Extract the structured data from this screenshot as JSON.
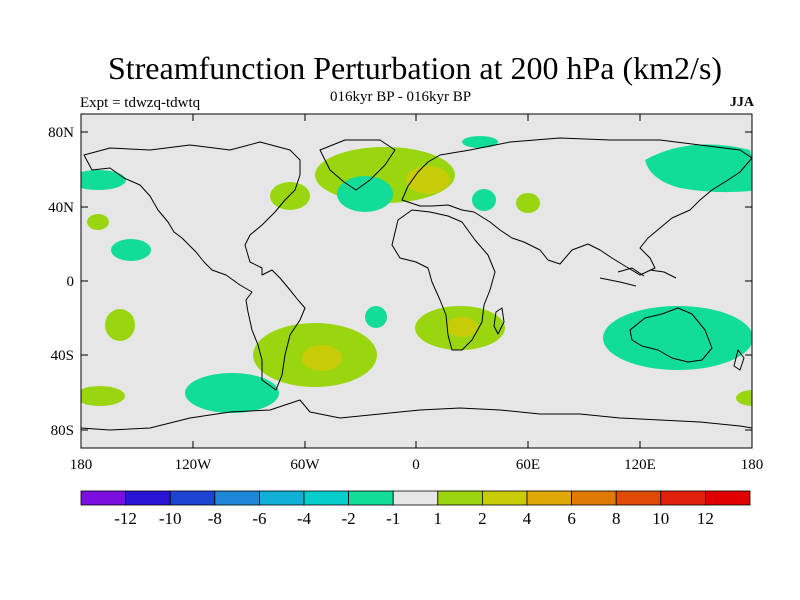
{
  "title": "Streamfunction Perturbation at 200 hPa (km2/s)",
  "subtitle_center": "016kyr BP - 016kyr BP",
  "subtitle_left": "Expt = tdwzq-tdwtq",
  "subtitle_right": "JJA",
  "map": {
    "background_color": "#e6e6e6",
    "coastline_color": "#000000",
    "lat_labels": [
      "80N",
      "40N",
      "0",
      "40S",
      "80S"
    ],
    "lon_labels": [
      "180",
      "120W",
      "60W",
      "0",
      "60E",
      "120E",
      "180"
    ]
  },
  "colorbar": {
    "colors": [
      "#7a0fe0",
      "#2a14d6",
      "#1c44d0",
      "#1e88d6",
      "#12b0d6",
      "#06cccc",
      "#11dd99",
      "#e6e6e6",
      "#99d60f",
      "#c8cc06",
      "#e0a806",
      "#e07a06",
      "#e04a06",
      "#e0200a",
      "#e00000"
    ],
    "labels": [
      "-12",
      "-10",
      "-8",
      "-6",
      "-4",
      "-2",
      "-1",
      "1",
      "2",
      "4",
      "6",
      "8",
      "10",
      "12"
    ]
  },
  "legend_swatch_names": [
    "level-lt-12",
    "level-12-10",
    "level-10-8",
    "level-8-6",
    "level-6-4",
    "level-4-2",
    "level-2-1",
    "level-1-1",
    "level-1-2",
    "level-2-4",
    "level-4-6",
    "level-6-8",
    "level-8-10",
    "level-10-12",
    "level-gt-12"
  ]
}
